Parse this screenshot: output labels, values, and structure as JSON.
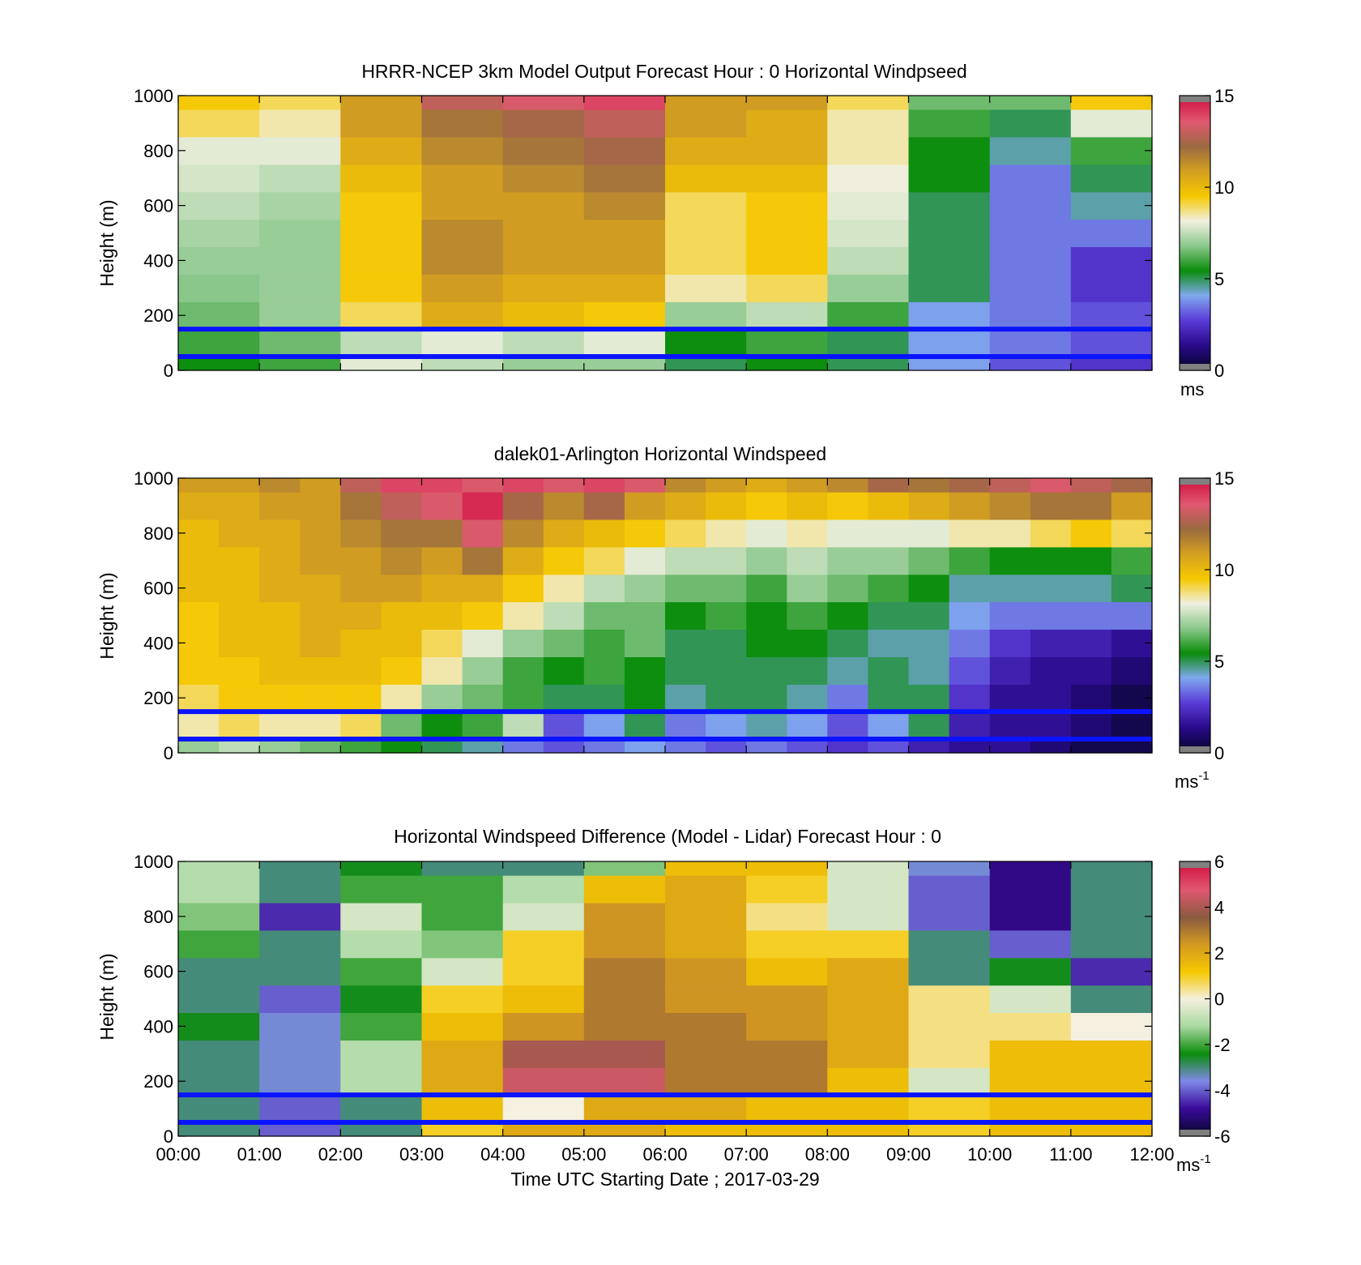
{
  "colors": {
    "ref_line": "#0a14ff",
    "missing": "#b0b0b0",
    "speed_scale": [
      "#05052a",
      "#2a0a8c",
      "#5a3cd8",
      "#7fa8ee",
      "#0a8c0a",
      "#8cc88c",
      "#f0f0e0",
      "#f5c800",
      "#d4a020",
      "#9a6a40",
      "#e05870",
      "#d01040"
    ],
    "diff_scale": [
      "#05052a",
      "#3a0a9a",
      "#7f8ae8",
      "#0a8c0a",
      "#a8d8a0",
      "#f5f0e0",
      "#f5c800",
      "#d49a20",
      "#8a5a40",
      "#e05870",
      "#d01040"
    ]
  },
  "chart_data": [
    {
      "type": "heatmap",
      "title": "HRRR-NCEP 3km Model Output   Forecast Hour : 0 Horizontal Windpseed",
      "ylabel": "Height (m)",
      "xlabel": "",
      "ylim": [
        0,
        1000
      ],
      "xlim": [
        0,
        12
      ],
      "yticks": [
        "0",
        "200",
        "400",
        "600",
        "800",
        "1000"
      ],
      "xticks": [],
      "colorbar": {
        "ticks": [
          "0",
          "5",
          "10",
          "15"
        ],
        "range": [
          0,
          15
        ],
        "unit": "ms",
        "unit_sup": ""
      },
      "ref_lines_m": [
        150,
        50
      ],
      "x_hours": [
        0,
        1,
        2,
        3,
        4,
        5,
        6,
        7,
        8,
        9,
        10,
        11
      ],
      "y_levels_m": [
        0,
        50,
        150,
        250,
        350,
        450,
        550,
        650,
        750,
        850,
        950
      ],
      "values": [
        [
          5.5,
          6.0,
          8.0,
          7.5,
          7.0,
          7.0,
          5.0,
          5.5,
          5.0,
          4.0,
          3.0,
          2.5
        ],
        [
          6.0,
          6.5,
          7.5,
          8.0,
          7.5,
          8.0,
          5.5,
          6.0,
          5.0,
          4.0,
          3.5,
          3.0
        ],
        [
          6.5,
          7.0,
          9.0,
          10.5,
          10.0,
          9.5,
          7.0,
          7.5,
          6.0,
          4.0,
          3.5,
          3.0
        ],
        [
          6.8,
          7.0,
          9.5,
          11.0,
          10.5,
          10.5,
          8.5,
          9.0,
          7.0,
          5.0,
          3.5,
          2.5
        ],
        [
          7.0,
          7.0,
          9.5,
          11.5,
          11.0,
          11.0,
          9.0,
          9.5,
          7.5,
          5.0,
          3.5,
          2.5
        ],
        [
          7.2,
          7.0,
          9.5,
          11.5,
          11.0,
          11.0,
          9.0,
          9.5,
          7.8,
          5.0,
          3.5,
          3.5
        ],
        [
          7.5,
          7.2,
          9.5,
          11.0,
          11.0,
          11.5,
          9.0,
          9.5,
          8.0,
          5.0,
          3.5,
          4.5
        ],
        [
          7.8,
          7.5,
          10.0,
          11.0,
          11.5,
          12.0,
          10.0,
          10.0,
          8.2,
          5.5,
          3.5,
          5.0
        ],
        [
          8.0,
          8.0,
          10.5,
          11.5,
          12.0,
          12.5,
          10.5,
          10.5,
          8.5,
          5.5,
          4.5,
          6.0
        ],
        [
          9.0,
          8.5,
          11.0,
          12.0,
          12.5,
          13.0,
          11.0,
          10.5,
          8.5,
          6.0,
          5.0,
          8.0
        ],
        [
          9.5,
          9.0,
          11.0,
          13.0,
          13.5,
          14.0,
          11.0,
          11.0,
          9.0,
          6.5,
          6.5,
          9.5
        ]
      ]
    },
    {
      "type": "heatmap",
      "title": "dalek01-Arlington  Horizontal Windspeed",
      "ylabel": "Height (m)",
      "xlabel": "",
      "ylim": [
        0,
        1000
      ],
      "xlim": [
        0,
        12
      ],
      "yticks": [
        "0",
        "200",
        "400",
        "600",
        "800",
        "1000"
      ],
      "xticks": [],
      "colorbar": {
        "ticks": [
          "0",
          "5",
          "10",
          "15"
        ],
        "range": [
          0,
          15
        ],
        "unit": "ms",
        "unit_sup": "-1"
      },
      "ref_lines_m": [
        150,
        50
      ],
      "x_hours": [
        0,
        0.5,
        1,
        1.5,
        2,
        2.5,
        3,
        3.5,
        4,
        4.5,
        5,
        5.5,
        6,
        6.5,
        7,
        7.5,
        8,
        8.5,
        9,
        9.5,
        10,
        10.5,
        11,
        11.5
      ],
      "y_levels_m": [
        0,
        50,
        150,
        250,
        350,
        450,
        550,
        650,
        750,
        850,
        950
      ],
      "values": [
        [
          7.0,
          7.5,
          7.0,
          6.5,
          6.0,
          5.5,
          5.0,
          4.5,
          3.5,
          3.0,
          3.5,
          4.0,
          3.5,
          3.0,
          3.5,
          3.0,
          2.5,
          3.0,
          2.0,
          1.5,
          1.5,
          1.0,
          0.5,
          0.5
        ],
        [
          8.5,
          9.0,
          8.5,
          8.5,
          9.0,
          6.5,
          5.5,
          6.0,
          7.5,
          3.0,
          4.0,
          5.0,
          3.5,
          4.0,
          4.5,
          4.0,
          3.0,
          4.0,
          5.0,
          2.0,
          1.5,
          1.5,
          1.0,
          0.5
        ],
        [
          9.0,
          9.5,
          9.5,
          9.5,
          9.5,
          8.5,
          7.0,
          6.5,
          6.0,
          5.0,
          5.0,
          5.5,
          4.5,
          5.0,
          5.0,
          4.5,
          3.5,
          5.0,
          5.0,
          2.5,
          1.5,
          1.5,
          1.0,
          0.5
        ],
        [
          9.5,
          9.5,
          10.0,
          10.0,
          10.0,
          9.5,
          8.5,
          7.0,
          6.0,
          5.5,
          6.0,
          5.5,
          5.0,
          5.0,
          5.0,
          5.0,
          4.5,
          5.0,
          4.5,
          3.0,
          2.0,
          1.5,
          1.5,
          1.0
        ],
        [
          9.5,
          10.0,
          10.0,
          10.5,
          10.0,
          10.0,
          9.0,
          8.0,
          7.0,
          6.5,
          6.0,
          6.5,
          5.0,
          5.0,
          5.5,
          5.5,
          5.0,
          4.5,
          4.5,
          3.5,
          2.5,
          2.0,
          2.0,
          1.5
        ],
        [
          9.5,
          10.0,
          10.0,
          10.5,
          10.5,
          10.0,
          10.0,
          9.5,
          8.5,
          7.5,
          6.5,
          6.5,
          5.5,
          6.0,
          5.5,
          6.0,
          5.5,
          5.0,
          5.0,
          4.0,
          3.5,
          3.5,
          3.5,
          3.5
        ],
        [
          10.0,
          10.0,
          10.5,
          10.5,
          11.0,
          11.0,
          10.5,
          10.5,
          9.5,
          8.5,
          7.5,
          7.0,
          6.5,
          6.5,
          6.0,
          7.0,
          6.5,
          6.0,
          5.5,
          4.5,
          4.5,
          4.5,
          4.5,
          5.0
        ],
        [
          10.0,
          10.0,
          10.5,
          11.0,
          11.0,
          11.5,
          11.0,
          12.0,
          10.5,
          9.5,
          9.0,
          8.0,
          7.5,
          7.5,
          7.0,
          7.5,
          7.0,
          7.0,
          6.5,
          6.0,
          5.5,
          5.5,
          5.5,
          6.0
        ],
        [
          10.0,
          10.5,
          10.5,
          11.0,
          11.5,
          12.0,
          12.0,
          13.5,
          11.5,
          10.5,
          10.0,
          9.5,
          9.0,
          8.5,
          8.0,
          8.5,
          8.0,
          8.0,
          8.0,
          8.5,
          8.5,
          9.0,
          9.5,
          9.0
        ],
        [
          10.5,
          10.5,
          11.0,
          11.0,
          12.0,
          13.0,
          13.5,
          14.5,
          12.5,
          11.5,
          12.5,
          11.0,
          10.5,
          10.0,
          9.5,
          10.0,
          9.5,
          10.0,
          10.5,
          11.0,
          11.5,
          12.0,
          12.0,
          11.0
        ],
        [
          11.0,
          11.0,
          11.5,
          11.0,
          13.0,
          14.0,
          14.0,
          13.5,
          14.0,
          13.5,
          14.0,
          13.5,
          11.5,
          11.0,
          10.5,
          11.0,
          11.5,
          12.5,
          12.0,
          12.5,
          13.0,
          13.5,
          13.0,
          12.5
        ]
      ]
    },
    {
      "type": "heatmap",
      "title": "Horizontal Windspeed Difference (Model - Lidar) Forecast Hour : 0",
      "ylabel": "Height (m)",
      "xlabel": "Time UTC  Starting Date ; 2017-03-29",
      "ylim": [
        0,
        1000
      ],
      "xlim": [
        0,
        12
      ],
      "yticks": [
        "0",
        "200",
        "400",
        "600",
        "800",
        "1000"
      ],
      "xticks": [
        "00:00",
        "01:00",
        "02:00",
        "03:00",
        "04:00",
        "05:00",
        "06:00",
        "07:00",
        "08:00",
        "09:00",
        "10:00",
        "11:00",
        "12:00"
      ],
      "colorbar": {
        "ticks": [
          "-6",
          "-4",
          "-2",
          "0",
          "2",
          "4",
          "6"
        ],
        "range": [
          -6,
          6
        ],
        "unit": "ms",
        "unit_sup": "-1"
      },
      "ref_lines_m": [
        150,
        50
      ],
      "x_hours": [
        0,
        1,
        2,
        3,
        4,
        5,
        6,
        7,
        8,
        9,
        10,
        11
      ],
      "y_levels_m": [
        0,
        50,
        150,
        250,
        350,
        450,
        550,
        650,
        750,
        850,
        950
      ],
      "values": [
        [
          -3.0,
          -4.0,
          -3.0,
          1.0,
          2.0,
          2.0,
          1.5,
          1.5,
          1.5,
          1.0,
          1.5,
          1.5
        ],
        [
          -3.0,
          -4.0,
          -3.0,
          1.5,
          0.0,
          2.0,
          2.0,
          1.5,
          1.5,
          1.0,
          1.5,
          1.5
        ],
        [
          -3.0,
          -3.5,
          -1.0,
          2.0,
          4.5,
          4.5,
          3.0,
          3.0,
          1.5,
          -0.5,
          1.5,
          1.5
        ],
        [
          -3.0,
          -3.5,
          -1.0,
          2.0,
          4.0,
          4.0,
          3.0,
          3.0,
          2.0,
          0.5,
          1.5,
          1.5
        ],
        [
          -2.5,
          -3.5,
          -2.0,
          1.5,
          2.5,
          3.0,
          3.0,
          2.5,
          2.0,
          0.5,
          0.5,
          0.0
        ],
        [
          -3.0,
          -4.0,
          -2.5,
          1.0,
          1.5,
          3.0,
          2.5,
          2.5,
          2.0,
          0.5,
          -0.5,
          -3.0
        ],
        [
          -3.0,
          -3.0,
          -2.0,
          -0.5,
          1.0,
          3.0,
          2.5,
          1.5,
          2.0,
          -3.0,
          -2.5,
          -4.5
        ],
        [
          -2.0,
          -3.0,
          -1.0,
          -1.5,
          1.0,
          2.5,
          2.0,
          1.0,
          1.0,
          -3.0,
          -4.0,
          -3.0
        ],
        [
          -1.5,
          -4.5,
          -0.5,
          -2.0,
          -0.5,
          2.5,
          2.0,
          0.5,
          -0.5,
          -4.0,
          -5.0,
          -3.0
        ],
        [
          -1.0,
          -3.0,
          -2.0,
          -2.0,
          -1.0,
          1.5,
          2.0,
          1.0,
          -0.5,
          -4.0,
          -5.0,
          -3.0
        ],
        [
          -1.0,
          -3.0,
          -2.5,
          -3.0,
          -3.0,
          -1.5,
          1.5,
          1.5,
          -0.5,
          -3.5,
          -5.0,
          -3.0
        ]
      ]
    }
  ]
}
